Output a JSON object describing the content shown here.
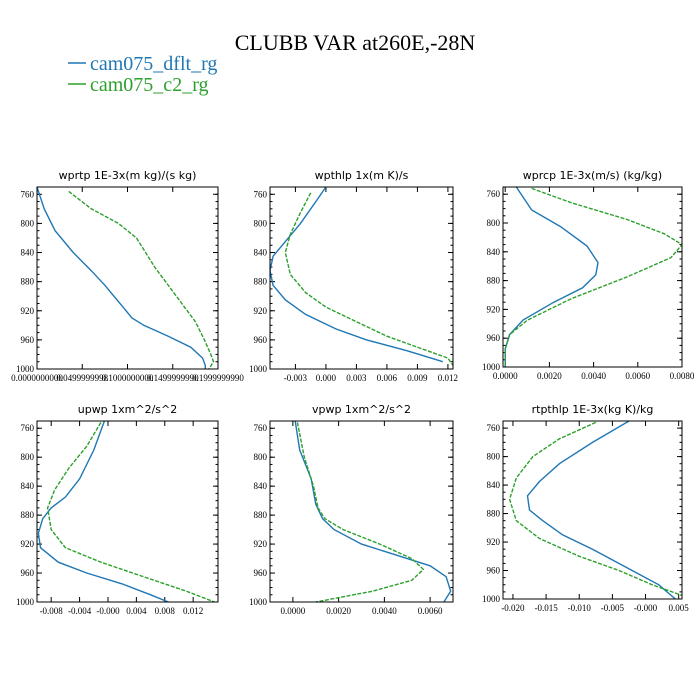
{
  "figure": {
    "title": "CLUBB VAR at260E,-28N",
    "legend": [
      {
        "label": "cam075_dflt_rg",
        "color": "#1f77b4",
        "dashed": false
      },
      {
        "label": "cam075_c2_rg",
        "color": "#2ca02c",
        "dashed": true
      }
    ]
  },
  "chart_data": [
    {
      "type": "line",
      "title": "wprtp  1E-3x(m kg)/(s kg)",
      "ylim": [
        1000,
        750
      ],
      "xlim": [
        0,
        0.2
      ],
      "yticks": [
        760,
        800,
        840,
        880,
        920,
        960,
        1000
      ],
      "xticks": [
        0,
        0.05,
        0.1,
        0.15,
        0.2
      ],
      "xticklabels": [
        "0.0000000000",
        "0.0499999998",
        "0.1000000000",
        "0.1499999990",
        "0.1999999990"
      ],
      "series": [
        {
          "name": "cam075_dflt_rg",
          "color": "#1f77b4",
          "dashed": false,
          "x": [
            0.0,
            0.008,
            0.02,
            0.04,
            0.06,
            0.075,
            0.085,
            0.095,
            0.105,
            0.118,
            0.145,
            0.17,
            0.183,
            0.186,
            0.186
          ],
          "y": [
            750,
            780,
            810,
            840,
            865,
            885,
            900,
            915,
            930,
            940,
            955,
            970,
            985,
            995,
            1000
          ]
        },
        {
          "name": "cam075_c2_rg",
          "color": "#2ca02c",
          "dashed": true,
          "x": [
            0.035,
            0.06,
            0.09,
            0.11,
            0.12,
            0.13,
            0.142,
            0.16,
            0.175,
            0.185,
            0.192,
            0.195,
            0.19
          ],
          "y": [
            756,
            780,
            800,
            820,
            840,
            860,
            880,
            910,
            935,
            960,
            980,
            990,
            1000
          ]
        }
      ]
    },
    {
      "type": "line",
      "title": "wpthlp  1x(m K)/s",
      "ylim": [
        1000,
        750
      ],
      "xlim": [
        -0.0055,
        0.0125
      ],
      "yticks": [
        760,
        800,
        840,
        880,
        920,
        960,
        1000
      ],
      "xticks": [
        -0.003,
        0.0,
        0.003,
        0.006,
        0.009,
        0.012
      ],
      "xticklabels": [
        "-0.003",
        "0.000",
        "0.003",
        "0.006",
        "0.009",
        "0.012"
      ],
      "series": [
        {
          "name": "cam075_dflt_rg",
          "color": "#1f77b4",
          "dashed": false,
          "x": [
            0.0,
            -0.001,
            -0.0025,
            -0.004,
            -0.0052,
            -0.0055,
            -0.0052,
            -0.004,
            -0.002,
            0.001,
            0.004,
            0.008,
            0.0115
          ],
          "y": [
            750,
            770,
            800,
            825,
            845,
            865,
            885,
            905,
            925,
            945,
            960,
            975,
            990
          ]
        },
        {
          "name": "cam075_c2_rg",
          "color": "#2ca02c",
          "dashed": true,
          "x": [
            -0.0015,
            -0.0025,
            -0.0035,
            -0.004,
            -0.0035,
            -0.002,
            0.0,
            0.003,
            0.006,
            0.009,
            0.012,
            0.0125
          ],
          "y": [
            758,
            785,
            815,
            840,
            870,
            895,
            915,
            935,
            955,
            970,
            985,
            995
          ]
        }
      ]
    },
    {
      "type": "line",
      "title": "wprcp  1E-3x(m/s) (kg/kg)",
      "ylim": [
        1000,
        750
      ],
      "xlim": [
        -0.0001,
        0.008
      ],
      "yticks": [
        760,
        800,
        840,
        880,
        920,
        960,
        1000
      ],
      "xticks": [
        0.0,
        0.002,
        0.004,
        0.006,
        0.008
      ],
      "xticklabels": [
        "0.0000",
        "0.0020",
        "0.0040",
        "0.0060",
        "0.0080"
      ],
      "series": [
        {
          "name": "cam075_dflt_rg",
          "color": "#1f77b4",
          "dashed": false,
          "x": [
            0.0005,
            0.0012,
            0.0025,
            0.0037,
            0.0042,
            0.0041,
            0.0035,
            0.0022,
            0.0008,
            0.0002,
            0.0,
            0.0
          ],
          "y": [
            750,
            782,
            805,
            832,
            855,
            872,
            890,
            910,
            935,
            955,
            975,
            1000
          ]
        },
        {
          "name": "cam075_c2_rg",
          "color": "#2ca02c",
          "dashed": true,
          "x": [
            0.0012,
            0.003,
            0.0055,
            0.0072,
            0.008,
            0.0075,
            0.0055,
            0.003,
            0.001,
            0.0002,
            0.0,
            0.0
          ],
          "y": [
            752,
            772,
            795,
            815,
            830,
            848,
            875,
            905,
            935,
            955,
            975,
            1000
          ]
        }
      ]
    },
    {
      "type": "line",
      "title": "upwp  1xm^2/s^2",
      "ylim": [
        1000,
        750
      ],
      "xlim": [
        -0.01,
        0.0155
      ],
      "yticks": [
        760,
        800,
        840,
        880,
        920,
        960,
        1000
      ],
      "xticks": [
        -0.008,
        -0.004,
        0.0,
        0.004,
        0.008,
        0.012
      ],
      "xticklabels": [
        "-0.008",
        "-0.004",
        "-0.000",
        "0.004",
        "0.008",
        "0.012"
      ],
      "series": [
        {
          "name": "cam075_dflt_rg",
          "color": "#1f77b4",
          "dashed": false,
          "x": [
            -0.0005,
            -0.002,
            -0.004,
            -0.006,
            -0.008,
            -0.0092,
            -0.0098,
            -0.0095,
            -0.007,
            -0.003,
            0.002,
            0.006,
            0.0085
          ],
          "y": [
            750,
            790,
            830,
            855,
            870,
            885,
            905,
            925,
            945,
            960,
            975,
            990,
            1000
          ]
        },
        {
          "name": "cam075_c2_rg",
          "color": "#2ca02c",
          "dashed": true,
          "x": [
            -0.001,
            -0.003,
            -0.0055,
            -0.0075,
            -0.0085,
            -0.008,
            -0.006,
            -0.001,
            0.005,
            0.011,
            0.015
          ],
          "y": [
            752,
            785,
            815,
            845,
            870,
            900,
            925,
            945,
            965,
            985,
            1000
          ]
        }
      ]
    },
    {
      "type": "line",
      "title": "vpwp  1xm^2/s^2",
      "ylim": [
        1000,
        750
      ],
      "xlim": [
        -0.001,
        0.007
      ],
      "yticks": [
        760,
        800,
        840,
        880,
        920,
        960,
        1000
      ],
      "xticks": [
        0.0,
        0.002,
        0.004,
        0.006
      ],
      "xticklabels": [
        "0.0000",
        "0.0020",
        "0.0040",
        "0.0060"
      ],
      "series": [
        {
          "name": "cam075_dflt_rg",
          "color": "#1f77b4",
          "dashed": false,
          "x": [
            0.0001,
            0.0003,
            0.0008,
            0.001,
            0.0013,
            0.0018,
            0.003,
            0.0045,
            0.006,
            0.0067,
            0.0069,
            0.0066
          ],
          "y": [
            750,
            790,
            830,
            865,
            885,
            900,
            920,
            935,
            950,
            965,
            985,
            1000
          ]
        },
        {
          "name": "cam075_c2_rg",
          "color": "#2ca02c",
          "dashed": true,
          "x": [
            0.0002,
            0.0005,
            0.0009,
            0.0011,
            0.0014,
            0.0022,
            0.0038,
            0.0052,
            0.0057,
            0.0052,
            0.0035,
            0.001
          ],
          "y": [
            752,
            800,
            840,
            870,
            885,
            900,
            920,
            940,
            955,
            970,
            985,
            1000
          ]
        }
      ]
    },
    {
      "type": "line",
      "title": "rtpthlp  1E-3x(kg K)/kg",
      "ylim": [
        1000,
        750
      ],
      "xlim": [
        -0.0215,
        0.0055
      ],
      "yticks": [
        760,
        800,
        840,
        880,
        920,
        960,
        1000
      ],
      "xticks": [
        -0.02,
        -0.015,
        -0.01,
        -0.005,
        0.0,
        0.005
      ],
      "xticklabels": [
        "-0.020",
        "-0.015",
        "-0.010",
        "-0.005",
        "-0.000",
        "0.005"
      ],
      "series": [
        {
          "name": "cam075_dflt_rg",
          "color": "#1f77b4",
          "dashed": false,
          "x": [
            -0.0025,
            -0.008,
            -0.013,
            -0.016,
            -0.0178,
            -0.0175,
            -0.0155,
            -0.0125,
            -0.008,
            -0.003,
            0.002,
            0.0045
          ],
          "y": [
            750,
            780,
            810,
            835,
            855,
            875,
            890,
            910,
            930,
            955,
            980,
            1000
          ]
        },
        {
          "name": "cam075_c2_rg",
          "color": "#2ca02c",
          "dashed": true,
          "x": [
            -0.0075,
            -0.013,
            -0.017,
            -0.0195,
            -0.0205,
            -0.0195,
            -0.016,
            -0.01,
            -0.004,
            0.001,
            0.0055
          ],
          "y": [
            752,
            775,
            800,
            830,
            860,
            890,
            915,
            940,
            960,
            980,
            995
          ]
        }
      ]
    }
  ]
}
